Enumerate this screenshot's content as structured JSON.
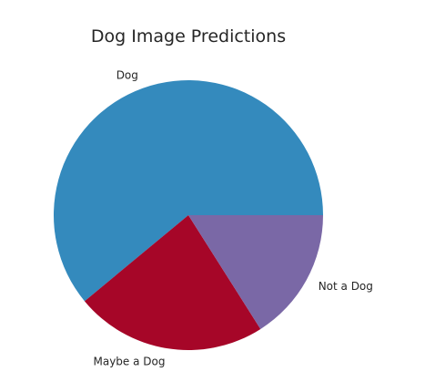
{
  "chart_data": {
    "type": "pie",
    "title": "Dog Image Predictions",
    "slices": [
      {
        "label": "Dog",
        "value": 61,
        "color": "#348abd"
      },
      {
        "label": "Maybe a Dog",
        "value": 23,
        "color": "#a60628"
      },
      {
        "label": "Not a Dog",
        "value": 16,
        "color": "#7a68a6"
      }
    ],
    "start_angle": "3 o'clock, counter-clockwise",
    "legend": "none"
  }
}
